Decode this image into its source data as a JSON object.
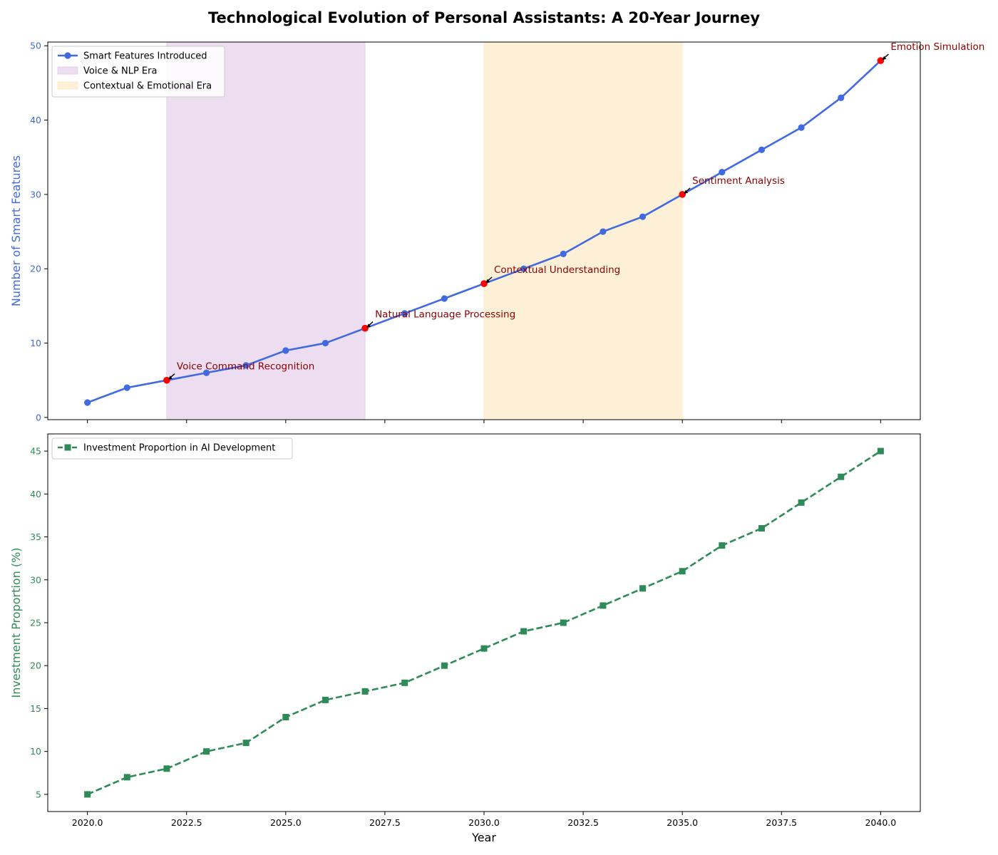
{
  "title": "Technological Evolution of Personal Assistants: A 20-Year Journey",
  "colors": {
    "features": "#4169e1",
    "investment": "#2e8b57",
    "milestone_marker": "#ff0000",
    "annotation_text": "#8b0000",
    "voice_era_band": "#e6d2eb",
    "contextual_era_band": "#fdebc8"
  },
  "chart_data": [
    {
      "type": "line",
      "xlim": [
        2019,
        2041
      ],
      "ylim": [
        -0.3,
        50.5
      ],
      "xticks": [
        2020,
        2022.5,
        2025,
        2027.5,
        2030,
        2032.5,
        2035,
        2037.5,
        2040
      ],
      "yticks": [
        0,
        10,
        20,
        30,
        40,
        50
      ],
      "ylabel": "Number of Smart Features",
      "xlabel": "",
      "show_xtick_labels": false,
      "grid": false,
      "legend_position": "upper-left",
      "x": [
        2020,
        2021,
        2022,
        2023,
        2024,
        2025,
        2026,
        2027,
        2028,
        2029,
        2030,
        2031,
        2032,
        2033,
        2034,
        2035,
        2036,
        2037,
        2038,
        2039,
        2040
      ],
      "series": [
        {
          "name": "Smart Features Introduced",
          "values": [
            2,
            4,
            5,
            6,
            7,
            9,
            10,
            12,
            14,
            16,
            18,
            20,
            22,
            25,
            27,
            30,
            33,
            36,
            39,
            43,
            48
          ],
          "marker": "circle",
          "line_style": "solid"
        }
      ],
      "shaded_regions": [
        {
          "name": "Voice & NLP Era",
          "x_start": 2022,
          "x_end": 2027,
          "color_key": "voice_era_band"
        },
        {
          "name": "Contextual & Emotional Era",
          "x_start": 2030,
          "x_end": 2035,
          "color_key": "contextual_era_band"
        }
      ],
      "annotations": [
        {
          "x": 2022,
          "y": 5,
          "text": "Voice Command Recognition"
        },
        {
          "x": 2027,
          "y": 12,
          "text": "Natural Language Processing"
        },
        {
          "x": 2030,
          "y": 18,
          "text": "Contextual Understanding"
        },
        {
          "x": 2035,
          "y": 30,
          "text": "Sentiment Analysis"
        },
        {
          "x": 2040,
          "y": 48,
          "text": "Emotion Simulation"
        }
      ]
    },
    {
      "type": "line",
      "xlim": [
        2019,
        2041
      ],
      "ylim": [
        3,
        47
      ],
      "xticks": [
        2020,
        2022.5,
        2025,
        2027.5,
        2030,
        2032.5,
        2035,
        2037.5,
        2040
      ],
      "xtick_labels": [
        "2020.0",
        "2022.5",
        "2025.0",
        "2027.5",
        "2030.0",
        "2032.5",
        "2035.0",
        "2037.5",
        "2040.0"
      ],
      "yticks": [
        5,
        10,
        15,
        20,
        25,
        30,
        35,
        40,
        45
      ],
      "ylabel": "Investment Proportion (%)",
      "xlabel": "Year",
      "show_xtick_labels": true,
      "grid": false,
      "legend_position": "upper-left",
      "x": [
        2020,
        2021,
        2022,
        2023,
        2024,
        2025,
        2026,
        2027,
        2028,
        2029,
        2030,
        2031,
        2032,
        2033,
        2034,
        2035,
        2036,
        2037,
        2038,
        2039,
        2040
      ],
      "series": [
        {
          "name": "Investment Proportion in AI Development",
          "values": [
            5,
            7,
            8,
            10,
            11,
            14,
            16,
            17,
            18,
            20,
            22,
            24,
            25,
            27,
            29,
            31,
            34,
            36,
            39,
            42,
            45
          ],
          "marker": "square",
          "line_style": "dashed"
        }
      ]
    }
  ]
}
